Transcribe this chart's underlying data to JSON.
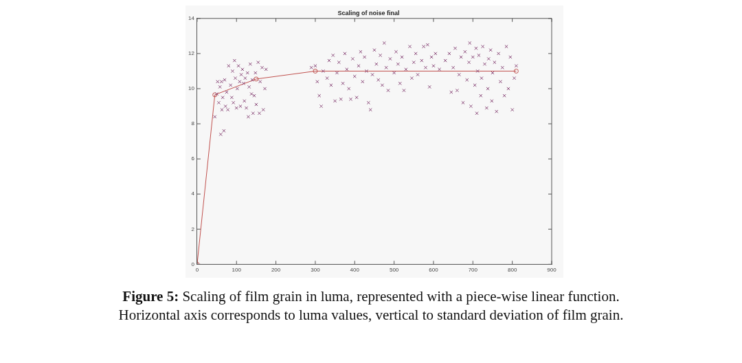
{
  "chart_data": {
    "type": "scatter",
    "title": "Scaling of noise final",
    "annotations": [
      "Figure 5:",
      "Scaling of film grain in luma, represented with a piece-wise linear function.",
      "Horizontal axis corresponds to luma values, vertical to standard deviation of film grain."
    ],
    "xlim": [
      0,
      900
    ],
    "xticks": [
      0,
      100,
      200,
      300,
      400,
      500,
      600,
      700,
      800,
      900
    ],
    "ylim": [
      0,
      14
    ],
    "yticks": [
      0,
      2,
      4,
      6,
      8,
      10,
      12,
      14
    ],
    "grid": false,
    "legend": false,
    "series": [
      {
        "type": "scatter",
        "marker": "cross",
        "color": "#8b4a7a",
        "x": [
          45,
          50,
          52,
          55,
          58,
          60,
          62,
          63,
          65,
          68,
          70,
          72,
          75,
          78,
          80,
          85,
          88,
          90,
          92,
          95,
          97,
          100,
          102,
          105,
          108,
          110,
          112,
          115,
          118,
          120,
          122,
          125,
          128,
          130,
          132,
          135,
          138,
          140,
          142,
          145,
          148,
          150,
          155,
          158,
          160,
          165,
          168,
          172,
          175,
          290,
          300,
          305,
          310,
          315,
          320,
          330,
          335,
          340,
          345,
          350,
          355,
          360,
          365,
          370,
          375,
          380,
          385,
          390,
          395,
          400,
          405,
          410,
          415,
          420,
          425,
          430,
          435,
          440,
          445,
          450,
          455,
          460,
          465,
          470,
          475,
          480,
          485,
          490,
          500,
          505,
          510,
          515,
          520,
          525,
          530,
          540,
          545,
          550,
          555,
          560,
          570,
          575,
          580,
          585,
          590,
          595,
          600,
          605,
          615,
          630,
          640,
          645,
          650,
          655,
          660,
          665,
          670,
          675,
          680,
          685,
          690,
          692,
          695,
          700,
          705,
          708,
          710,
          712,
          715,
          720,
          722,
          725,
          730,
          735,
          738,
          740,
          745,
          748,
          750,
          755,
          760,
          765,
          770,
          775,
          780,
          785,
          790,
          795,
          800,
          805,
          810
        ],
        "values": [
          8.4,
          9.7,
          10.4,
          9.2,
          10.1,
          7.4,
          10.4,
          8.8,
          9.5,
          7.6,
          10.5,
          9.0,
          9.8,
          8.8,
          11.3,
          10.2,
          9.5,
          11.0,
          9.2,
          11.6,
          10.6,
          8.9,
          10.0,
          11.3,
          10.4,
          9.0,
          10.8,
          11.1,
          10.3,
          9.3,
          10.6,
          8.9,
          10.9,
          8.4,
          10.1,
          11.4,
          9.7,
          10.5,
          8.6,
          9.6,
          10.9,
          9.1,
          11.5,
          8.6,
          10.4,
          11.2,
          8.8,
          10.0,
          11.1,
          11.2,
          11.3,
          10.4,
          9.6,
          9.0,
          11.0,
          10.6,
          11.6,
          10.2,
          11.9,
          9.3,
          10.9,
          11.5,
          9.4,
          10.3,
          12.0,
          11.1,
          10.0,
          9.4,
          11.7,
          10.7,
          9.5,
          11.3,
          12.1,
          10.4,
          11.8,
          11.0,
          9.2,
          8.8,
          10.8,
          12.2,
          11.4,
          10.5,
          11.9,
          10.2,
          12.6,
          11.2,
          9.9,
          11.7,
          10.9,
          12.1,
          11.4,
          10.3,
          11.8,
          9.9,
          11.1,
          12.4,
          10.6,
          11.5,
          12.0,
          10.8,
          11.6,
          12.4,
          11.2,
          12.5,
          10.1,
          11.8,
          11.3,
          12.0,
          11.1,
          11.6,
          12.0,
          9.8,
          11.2,
          12.3,
          9.9,
          10.8,
          11.8,
          9.2,
          12.1,
          10.5,
          11.5,
          12.6,
          9.0,
          11.8,
          10.2,
          12.3,
          8.6,
          11.0,
          11.9,
          9.6,
          10.6,
          12.4,
          11.4,
          8.9,
          10.0,
          11.7,
          12.2,
          9.3,
          10.9,
          11.5,
          8.7,
          12.0,
          10.4,
          11.2,
          9.6,
          12.4,
          10.0,
          11.8,
          8.8,
          10.6,
          11.3
        ]
      },
      {
        "type": "line",
        "marker": "circle",
        "line_style": "solid",
        "color": "#c0504d",
        "x": [
          0,
          45,
          150,
          300,
          810
        ],
        "values": [
          0,
          9.65,
          10.55,
          11.0,
          11.0
        ]
      }
    ]
  }
}
